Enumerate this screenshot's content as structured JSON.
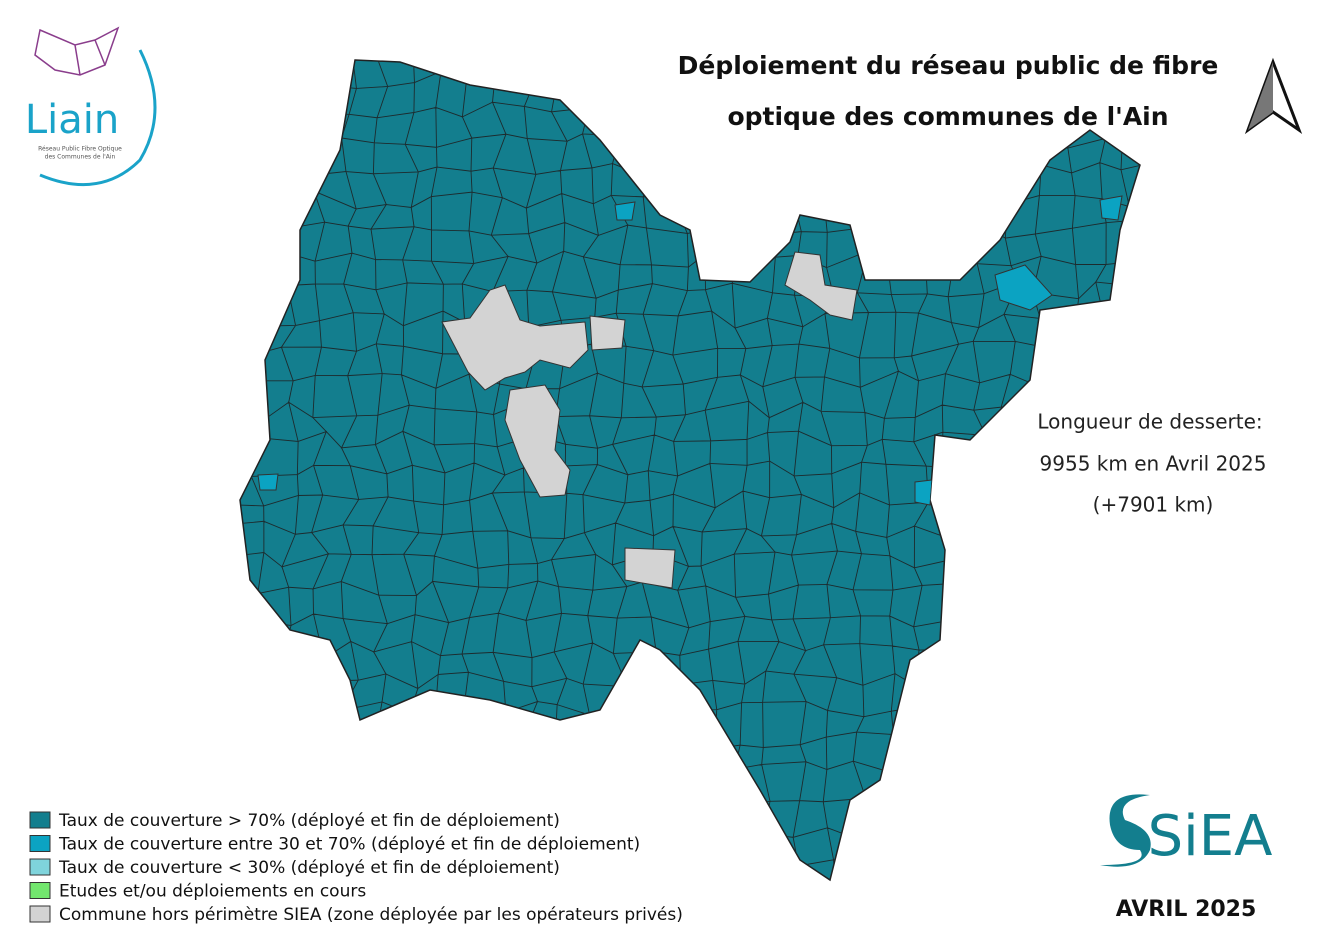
{
  "header": {
    "title_lines": [
      "Déploiement du réseau public de fibre",
      "optique des communes de l'Ain"
    ]
  },
  "logo": {
    "name": "Liain",
    "subtitle_lines": [
      "Réseau Public Fibre Optique",
      "des Communes de l'Ain"
    ]
  },
  "info": {
    "lines": [
      "Longueur de desserte:",
      "9955 km en Avril 2025",
      "(+7901 km)"
    ]
  },
  "legend": {
    "items": [
      {
        "label": "Taux de couverture > 70% (déployé et fin de déploiement)",
        "color": "#137e8e"
      },
      {
        "label": "Taux de couverture entre 30 et 70% (déployé et fin de déploiement)",
        "color": "#0ba3c2"
      },
      {
        "label": "Taux de couverture < 30% (déployé et fin de déploiement)",
        "color": "#7fd4dc"
      },
      {
        "label": "Etudes et/ou déploiements en cours",
        "color": "#72e66e"
      },
      {
        "label": "Commune hors périmètre SIEA (zone déployée par les opérateurs privés)",
        "color": "#d3d3d3"
      }
    ]
  },
  "footer": {
    "brand": "SiEA",
    "date": "AVRIL 2025"
  }
}
